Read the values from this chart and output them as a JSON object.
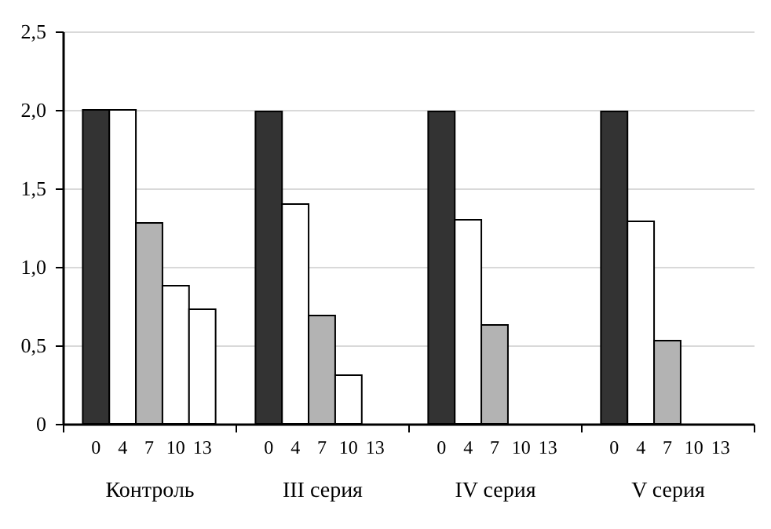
{
  "chart_data": {
    "type": "bar",
    "categories": [
      "Контроль",
      "III серия",
      "IV серия",
      "V серия"
    ],
    "series": [
      {
        "name": "0",
        "color": "#333333",
        "values": [
          2.0,
          1.99,
          1.99,
          1.99
        ]
      },
      {
        "name": "4",
        "color": "#ffffff",
        "values": [
          2.0,
          1.4,
          1.3,
          1.29
        ]
      },
      {
        "name": "7",
        "color": "#b3b3b3",
        "values": [
          1.28,
          0.69,
          0.63,
          0.53
        ]
      },
      {
        "name": "10",
        "color": "#ffffff",
        "values": [
          0.88,
          0.31,
          null,
          null
        ]
      },
      {
        "name": "13",
        "color": "#ffffff",
        "values": [
          0.73,
          null,
          null,
          null
        ]
      }
    ],
    "ylim": [
      0,
      2.5
    ],
    "yticks": [
      0,
      {
        "value": 0.5,
        "label": "0,5"
      },
      {
        "value": 1,
        "label": "1,0"
      },
      {
        "value": 1.5,
        "label": "1,5"
      },
      {
        "value": 2,
        "label": "2,0"
      },
      {
        "value": 2.5,
        "label": "2,5"
      }
    ],
    "grid": "y"
  }
}
